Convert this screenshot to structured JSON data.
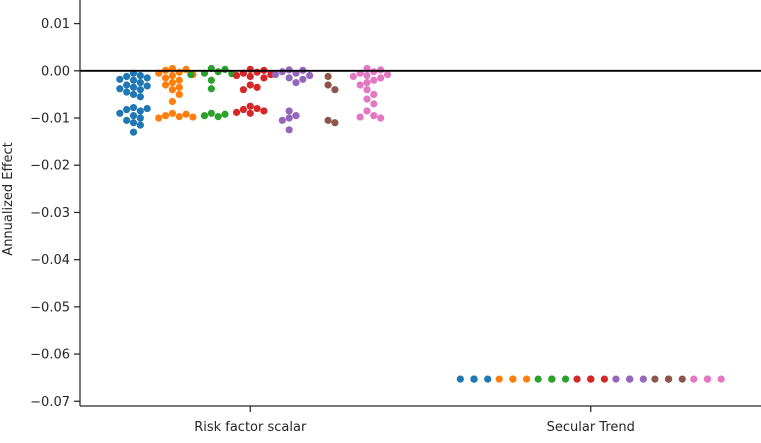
{
  "chart_data": {
    "type": "scatter",
    "subtype": "swarm",
    "title": "",
    "xlabel": "",
    "ylabel": "Annualized Effect",
    "ylim": [
      -0.071,
      0.015
    ],
    "yticks": [
      0.01,
      0.0,
      -0.01,
      -0.02,
      -0.03,
      -0.04,
      -0.05,
      -0.06,
      -0.07
    ],
    "ytick_labels": [
      "0.01",
      "0.00",
      "−0.01",
      "−0.02",
      "−0.03",
      "−0.04",
      "−0.05",
      "−0.06",
      "−0.07"
    ],
    "categories": [
      "Risk factor scalar",
      "Secular Trend"
    ],
    "reference_line": 0.0,
    "grid": false,
    "legend": "none",
    "palette": [
      "#1f77b4",
      "#ff7f0e",
      "#2ca02c",
      "#d62728",
      "#9467bd",
      "#8c564b",
      "#e377c2"
    ],
    "groups": [
      {
        "category": "Risk factor scalar",
        "series": [
          {
            "color": "#1f77b4",
            "values": [
              -0.0005,
              -0.001,
              -0.0012,
              -0.0015,
              -0.0018,
              -0.002,
              -0.0025,
              -0.003,
              -0.0032,
              -0.0035,
              -0.0038,
              -0.004,
              -0.0045,
              -0.005,
              -0.0055,
              -0.0078,
              -0.008,
              -0.0082,
              -0.0085,
              -0.009,
              -0.0095,
              -0.01,
              -0.0105,
              -0.011,
              -0.0115,
              -0.013
            ]
          },
          {
            "color": "#ff7f0e",
            "values": [
              0.0005,
              0.0003,
              0.0001,
              -0.0003,
              -0.0005,
              -0.0008,
              -0.001,
              -0.0015,
              -0.002,
              -0.0025,
              -0.003,
              -0.0035,
              -0.004,
              -0.005,
              -0.0065,
              -0.009,
              -0.0092,
              -0.0095,
              -0.0097,
              -0.0098,
              -0.01
            ]
          },
          {
            "color": "#2ca02c",
            "values": [
              0.0005,
              0.0003,
              -0.0002,
              -0.0005,
              -0.0006,
              -0.0008,
              -0.002,
              -0.0038,
              -0.009,
              -0.0092,
              -0.0095,
              -0.0097
            ]
          },
          {
            "color": "#d62728",
            "values": [
              0.0003,
              0.0001,
              -0.0003,
              -0.0005,
              -0.0008,
              -0.001,
              -0.0012,
              -0.0015,
              -0.003,
              -0.0035,
              -0.004,
              -0.0075,
              -0.008,
              -0.0082,
              -0.0085,
              -0.0088,
              -0.009
            ]
          },
          {
            "color": "#9467bd",
            "values": [
              0.0002,
              0.0001,
              -0.0002,
              -0.0005,
              -0.0008,
              -0.001,
              -0.0015,
              -0.0018,
              -0.0025,
              -0.0085,
              -0.0095,
              -0.01,
              -0.0105,
              -0.0125
            ]
          },
          {
            "color": "#8c564b",
            "values": [
              -0.0012,
              -0.003,
              -0.004,
              -0.0105,
              -0.011
            ]
          },
          {
            "color": "#e377c2",
            "values": [
              0.0005,
              0.0002,
              -0.0002,
              -0.0005,
              -0.0008,
              -0.001,
              -0.0012,
              -0.0015,
              -0.002,
              -0.0025,
              -0.003,
              -0.004,
              -0.005,
              -0.006,
              -0.007,
              -0.0085,
              -0.0095,
              -0.0098,
              -0.01
            ]
          }
        ]
      },
      {
        "category": "Secular Trend",
        "series": [
          {
            "color": "#1f77b4",
            "values": [
              -0.0653,
              -0.0653,
              -0.0653,
              -0.0653,
              -0.0653
            ]
          },
          {
            "color": "#ff7f0e",
            "values": [
              -0.0653,
              -0.0653,
              -0.0653,
              -0.0653,
              -0.0653
            ]
          },
          {
            "color": "#2ca02c",
            "values": [
              -0.0653,
              -0.0653,
              -0.0653,
              -0.0653,
              -0.0653
            ]
          },
          {
            "color": "#d62728",
            "values": [
              -0.0653,
              -0.0653,
              -0.0653,
              -0.0653,
              -0.0653
            ]
          },
          {
            "color": "#9467bd",
            "values": [
              -0.0653,
              -0.0653,
              -0.0653,
              -0.0653,
              -0.0653
            ]
          },
          {
            "color": "#8c564b",
            "values": [
              -0.0653,
              -0.0653,
              -0.0653,
              -0.0653,
              -0.0653
            ]
          },
          {
            "color": "#e377c2",
            "values": [
              -0.0653,
              -0.0653,
              -0.0653,
              -0.0653,
              -0.0653
            ]
          }
        ]
      }
    ]
  }
}
